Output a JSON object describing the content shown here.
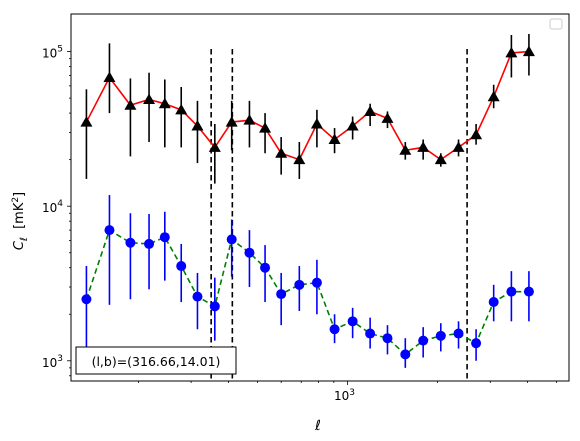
{
  "chart_data": {
    "type": "line",
    "xlabel": "ℓ",
    "ylabel_main": "C",
    "ylabel_sub": "ℓ",
    "ylabel_unit": "[mK",
    "ylabel_unit_sup": "2",
    "ylabel_unit_close": "]",
    "xscale": "log",
    "yscale": "log",
    "xlim": [
      119,
      5500
    ],
    "ylim": [
      740,
      175000
    ],
    "xticks": [
      {
        "value": 1000,
        "base": "10",
        "exp": "3"
      }
    ],
    "yticks": [
      {
        "value": 1000,
        "base": "10",
        "exp": "3"
      },
      {
        "value": 10000,
        "base": "10",
        "exp": "4"
      },
      {
        "value": 100000,
        "base": "10",
        "exp": "5"
      }
    ],
    "vlines": [
      350,
      412,
      2510
    ],
    "legend": {
      "placement": "upper-right",
      "entries": []
    },
    "annotation": "(l,b)=(316.66,14.01)",
    "series": [
      {
        "marker": "triangle",
        "color": "#ff0000",
        "marker_color": "#000000",
        "errorbar_color": "#000000",
        "linestyle": "solid",
        "x": [
          134,
          160,
          188,
          217,
          245,
          278,
          315,
          360,
          410,
          470,
          530,
          600,
          690,
          790,
          905,
          1040,
          1190,
          1360,
          1560,
          1790,
          2050,
          2350,
          2690,
          3080,
          3530,
          4040
        ],
        "y": [
          35000,
          68000,
          45000,
          49000,
          46000,
          42000,
          33000,
          24000,
          35000,
          36000,
          32000,
          22000,
          20000,
          34000,
          27000,
          33000,
          41000,
          37000,
          23000,
          24000,
          20000,
          24000,
          29000,
          51000,
          98000,
          100000
        ],
        "err_low": [
          20000,
          28000,
          24000,
          23000,
          22000,
          18000,
          14000,
          10000,
          12000,
          12000,
          10000,
          6000,
          5000,
          10000,
          5000,
          6000,
          8000,
          5000,
          3000,
          4000,
          2000,
          3000,
          4000,
          8000,
          30000,
          30000
        ],
        "err_high": [
          22000,
          45000,
          22000,
          24000,
          20000,
          17000,
          15000,
          10000,
          13000,
          12000,
          8000,
          6000,
          6000,
          8000,
          5000,
          5000,
          5000,
          4000,
          3000,
          3000,
          2000,
          3000,
          5000,
          10000,
          30000,
          30000
        ]
      },
      {
        "marker": "circle",
        "color": "#008000",
        "marker_color": "#0000ff",
        "errorbar_color": "#0000ff",
        "linestyle": "dashed",
        "x": [
          134,
          160,
          188,
          217,
          245,
          278,
          315,
          360,
          410,
          470,
          530,
          600,
          690,
          790,
          905,
          1040,
          1190,
          1360,
          1560,
          1790,
          2050,
          2350,
          2690,
          3080,
          3530,
          4040
        ],
        "y": [
          2500,
          7000,
          5800,
          5700,
          6300,
          4100,
          2600,
          2250,
          6100,
          5000,
          4000,
          2700,
          3100,
          3200,
          1600,
          1800,
          1500,
          1400,
          1100,
          1350,
          1450,
          1500,
          1300,
          2400,
          2800,
          2800
        ],
        "err_low": [
          1400,
          4700,
          3300,
          2800,
          3000,
          1700,
          1000,
          900,
          2600,
          2000,
          1600,
          1000,
          1000,
          1200,
          300,
          400,
          300,
          300,
          200,
          300,
          300,
          300,
          300,
          600,
          1000,
          1000
        ],
        "err_high": [
          1600,
          4800,
          3200,
          3200,
          2900,
          1600,
          1100,
          1200,
          2100,
          2000,
          1600,
          1000,
          1000,
          1300,
          400,
          400,
          400,
          300,
          300,
          300,
          300,
          300,
          300,
          700,
          1000,
          1000
        ]
      }
    ]
  }
}
